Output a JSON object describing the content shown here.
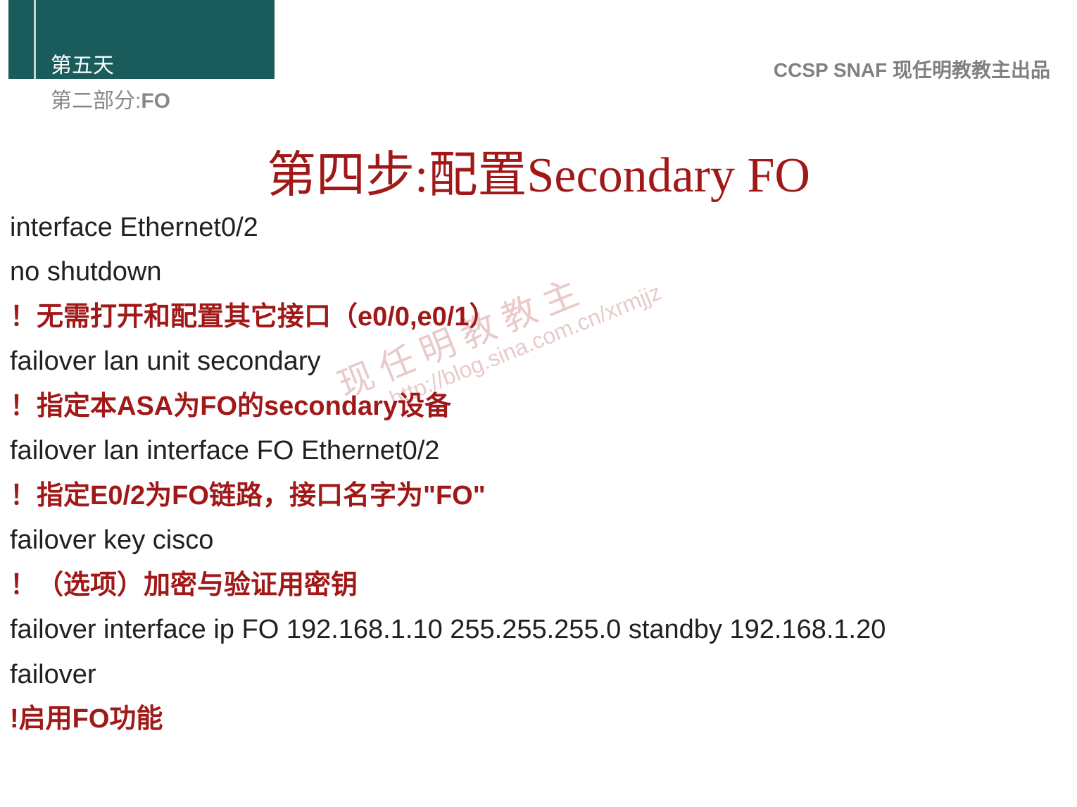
{
  "header": {
    "day": "第五天",
    "part": "第二部分:",
    "part_suffix": "FO",
    "source": "CCSP SNAF  现任明教教主出品"
  },
  "title": "第四步:配置Secondary FO",
  "lines": [
    {
      "text": "interface Ethernet0/2",
      "comment": false
    },
    {
      "text": "no shutdown",
      "comment": false
    },
    {
      "text": "！无需打开和配置其它接口（e0/0,e0/1）",
      "comment": true
    },
    {
      "text": "failover lan unit secondary",
      "comment": false
    },
    {
      "text": "！指定本ASA为FO的secondary设备",
      "comment": true
    },
    {
      "text": "failover lan interface FO Ethernet0/2",
      "comment": false
    },
    {
      "text": "！指定E0/2为FO链路，接口名字为\"FO\"",
      "comment": true
    },
    {
      "text": "failover key cisco",
      "comment": false
    },
    {
      "text": "！（选项）加密与验证用密钥",
      "comment": true
    },
    {
      "text": "failover interface ip FO 192.168.1.10 255.255.255.0 standby 192.168.1.20",
      "comment": false
    },
    {
      "text": "failover",
      "comment": false
    },
    {
      "text": "!启用FO功能",
      "comment": true
    }
  ],
  "watermark": {
    "main": "现 任 明 教 教 主",
    "url": "http://blog.sina.com.cn/xrmjjz"
  },
  "colors": {
    "header_bg": "#1a5c5c",
    "title_color": "#a01818",
    "comment_color": "#a01818",
    "text_color": "#202020",
    "gray_text": "#888888"
  }
}
